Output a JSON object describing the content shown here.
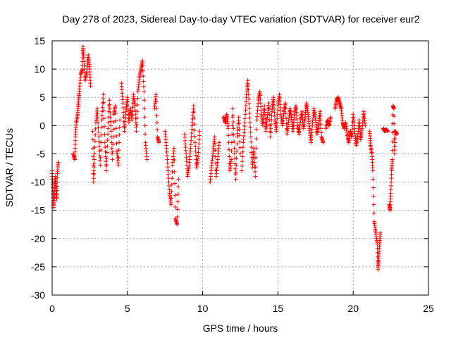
{
  "chart_data": {
    "type": "scatter",
    "title": "Day 278 of 2023, Sidereal Day-to-day VTEC variation (SDTVAR) for receiver eur2",
    "xlabel": "GPS time / hours",
    "ylabel": "SDTVAR / TECUs",
    "xlim": [
      0,
      25
    ],
    "ylim": [
      -30,
      15
    ],
    "xticks": [
      "0",
      "5",
      "10",
      "15",
      "20",
      "25"
    ],
    "yticks": [
      "15",
      "10",
      "5",
      "0",
      "-5",
      "-10",
      "-15",
      "-20",
      "-25",
      "-30"
    ],
    "grid": true,
    "marker": "+",
    "series": [
      {
        "name": "SDTVAR",
        "color": "#ff0000",
        "segments": [
          [
            [
              0.0,
              -8.0
            ],
            [
              0.05,
              -11.0
            ],
            [
              0.1,
              -14.5
            ],
            [
              0.15,
              -12.0
            ],
            [
              0.2,
              -9.0
            ],
            [
              0.25,
              -11.5
            ],
            [
              0.3,
              -13.0
            ],
            [
              0.35,
              -8.5
            ],
            [
              0.4,
              -6.5
            ]
          ],
          [
            [
              1.4,
              -5.0
            ],
            [
              1.5,
              -6.0
            ],
            [
              1.55,
              -2.0
            ],
            [
              1.6,
              0.5
            ],
            [
              1.7,
              2.0
            ],
            [
              1.75,
              4.0
            ],
            [
              1.8,
              6.0
            ],
            [
              1.9,
              9.0
            ],
            [
              2.0,
              10.0
            ],
            [
              2.05,
              14.0
            ],
            [
              2.1,
              12.0
            ],
            [
              2.2,
              8.0
            ],
            [
              2.3,
              9.5
            ],
            [
              2.4,
              12.5
            ],
            [
              2.5,
              10.0
            ],
            [
              2.55,
              7.0
            ]
          ],
          [
            [
              2.7,
              -1.0
            ],
            [
              2.75,
              -10.0
            ],
            [
              2.8,
              -6.0
            ],
            [
              2.9,
              0.5
            ],
            [
              3.0,
              3.0
            ],
            [
              3.1,
              -2.0
            ],
            [
              3.2,
              -7.0
            ],
            [
              3.3,
              1.0
            ],
            [
              3.4,
              5.5
            ],
            [
              3.5,
              -3.0
            ],
            [
              3.6,
              -8.0
            ],
            [
              3.7,
              -1.5
            ],
            [
              3.8,
              4.5
            ],
            [
              3.9,
              0.0
            ],
            [
              4.0,
              -6.0
            ],
            [
              4.1,
              2.0
            ],
            [
              4.2,
              3.5
            ],
            [
              4.3,
              -4.5
            ],
            [
              4.4,
              -7.0
            ],
            [
              4.5,
              1.0
            ]
          ],
          [
            [
              4.6,
              7.5
            ],
            [
              4.7,
              4.0
            ],
            [
              4.8,
              -1.0
            ],
            [
              4.9,
              2.5
            ],
            [
              5.0,
              5.0
            ],
            [
              5.1,
              0.5
            ],
            [
              5.2,
              3.0
            ],
            [
              5.3,
              1.0
            ],
            [
              5.4,
              5.5
            ],
            [
              5.5,
              3.5
            ],
            [
              5.6,
              -1.0
            ],
            [
              5.7,
              6.0
            ],
            [
              5.8,
              8.5
            ],
            [
              5.9,
              10.0
            ],
            [
              6.0,
              11.5
            ],
            [
              6.1,
              6.0
            ],
            [
              6.2,
              -3.0
            ],
            [
              6.3,
              -6.0
            ]
          ],
          [
            [
              6.8,
              3.0
            ],
            [
              6.9,
              5.5
            ],
            [
              7.0,
              -2.0
            ],
            [
              7.1,
              -3.0
            ]
          ],
          [
            [
              7.5,
              -1.0
            ],
            [
              7.6,
              -4.0
            ],
            [
              7.7,
              -8.0
            ],
            [
              7.8,
              -12.0
            ],
            [
              7.9,
              -14.0
            ],
            [
              8.0,
              -7.0
            ],
            [
              8.1,
              -4.0
            ],
            [
              8.2,
              -16.5
            ],
            [
              8.3,
              -17.5
            ],
            [
              8.4,
              -9.5
            ]
          ],
          [
            [
              8.8,
              -1.5
            ],
            [
              8.9,
              -5.0
            ],
            [
              9.0,
              -9.0
            ],
            [
              9.1,
              -7.0
            ],
            [
              9.2,
              -4.0
            ],
            [
              9.3,
              0.0
            ],
            [
              9.4,
              3.5
            ],
            [
              9.5,
              -3.0
            ],
            [
              9.6,
              -7.5
            ],
            [
              9.7,
              -5.5
            ],
            [
              9.8,
              -1.0
            ]
          ],
          [
            [
              10.5,
              -10.0
            ],
            [
              10.6,
              -7.0
            ],
            [
              10.7,
              -4.5
            ],
            [
              10.8,
              -2.0
            ],
            [
              10.9,
              -9.0
            ],
            [
              11.0,
              -6.0
            ],
            [
              11.1,
              -3.0
            ]
          ],
          [
            [
              11.4,
              1.5
            ],
            [
              11.5,
              0.5
            ],
            [
              11.6,
              2.0
            ],
            [
              11.7,
              -0.5
            ],
            [
              11.8,
              -8.0
            ],
            [
              11.9,
              -6.0
            ],
            [
              12.0,
              3.0
            ],
            [
              12.1,
              -4.0
            ],
            [
              12.2,
              -9.5
            ],
            [
              12.3,
              -2.0
            ],
            [
              12.4,
              1.5
            ],
            [
              12.5,
              -5.0
            ]
          ],
          [
            [
              12.6,
              -8.0
            ],
            [
              12.7,
              -3.0
            ],
            [
              12.8,
              0.5
            ],
            [
              12.9,
              5.0
            ],
            [
              13.0,
              8.0
            ],
            [
              13.1,
              3.0
            ],
            [
              13.2,
              -2.0
            ],
            [
              13.3,
              -7.5
            ],
            [
              13.4,
              -4.0
            ],
            [
              13.5,
              -9.0
            ],
            [
              13.6,
              1.0
            ],
            [
              13.7,
              4.5
            ],
            [
              13.8,
              6.0
            ],
            [
              13.9,
              2.0
            ],
            [
              14.0,
              0.0
            ],
            [
              14.1,
              3.5
            ],
            [
              14.2,
              -1.0
            ],
            [
              14.3,
              1.5
            ],
            [
              14.4,
              4.0
            ],
            [
              14.5,
              -2.0
            ],
            [
              14.6,
              2.5
            ],
            [
              14.7,
              5.0
            ],
            [
              14.8,
              1.0
            ],
            [
              14.9,
              -1.0
            ],
            [
              15.0,
              3.5
            ],
            [
              15.1,
              5.5
            ],
            [
              15.2,
              2.0
            ],
            [
              15.3,
              0.0
            ],
            [
              15.4,
              2.5
            ],
            [
              15.5,
              4.0
            ],
            [
              15.6,
              -1.5
            ],
            [
              15.7,
              0.5
            ],
            [
              15.8,
              3.0
            ],
            [
              15.9,
              1.5
            ],
            [
              16.0,
              -1.0
            ],
            [
              16.1,
              2.0
            ],
            [
              16.2,
              3.5
            ],
            [
              16.3,
              0.0
            ],
            [
              16.4,
              -1.5
            ],
            [
              16.5,
              1.0
            ],
            [
              16.6,
              2.5
            ],
            [
              16.7,
              -0.5
            ],
            [
              16.8,
              1.5
            ],
            [
              16.9,
              4.0
            ],
            [
              17.0,
              2.0
            ],
            [
              17.1,
              -0.5
            ],
            [
              17.2,
              -3.0
            ],
            [
              17.3,
              0.5
            ],
            [
              17.4,
              3.0
            ],
            [
              17.5,
              1.0
            ],
            [
              17.6,
              -1.5
            ],
            [
              17.7,
              0.0
            ],
            [
              17.8,
              2.5
            ],
            [
              17.9,
              -2.0
            ],
            [
              18.0,
              -3.0
            ]
          ],
          [
            [
              18.2,
              -0.5
            ],
            [
              18.3,
              1.0
            ],
            [
              18.4,
              0.0
            ],
            [
              18.5,
              1.5
            ]
          ],
          [
            [
              18.8,
              3.0
            ],
            [
              18.9,
              4.5
            ],
            [
              19.0,
              5.0
            ],
            [
              19.1,
              4.0
            ],
            [
              19.2,
              3.0
            ],
            [
              19.3,
              0.5
            ],
            [
              19.4,
              -0.5
            ],
            [
              19.5,
              0.5
            ],
            [
              19.6,
              -1.5
            ],
            [
              19.7,
              -3.0
            ],
            [
              19.8,
              -1.0
            ],
            [
              19.9,
              -2.0
            ],
            [
              20.0,
              2.0
            ],
            [
              20.1,
              -1.0
            ],
            [
              20.2,
              -3.5
            ],
            [
              20.3,
              -2.0
            ],
            [
              20.4,
              1.0
            ],
            [
              20.5,
              -2.5
            ],
            [
              20.6,
              -0.5
            ],
            [
              20.7,
              2.5
            ],
            [
              20.8,
              0.0
            ]
          ],
          [
            [
              21.1,
              -1.0
            ],
            [
              21.15,
              -3.5
            ],
            [
              21.25,
              -5.0
            ],
            [
              21.3,
              -8.0
            ],
            [
              21.4,
              -17.0
            ],
            [
              21.5,
              -19.0
            ],
            [
              21.6,
              -21.0
            ],
            [
              21.65,
              -25.5
            ],
            [
              21.7,
              -23.5
            ],
            [
              21.75,
              -21.0
            ],
            [
              21.8,
              -19.0
            ]
          ],
          [
            [
              22.0,
              -0.5
            ],
            [
              22.1,
              -1.0
            ],
            [
              22.2,
              -0.7
            ],
            [
              22.3,
              -1.0
            ]
          ],
          [
            [
              22.4,
              -14.0
            ],
            [
              22.45,
              -15.0
            ],
            [
              22.5,
              -12.0
            ],
            [
              22.55,
              -8.0
            ],
            [
              22.6,
              -6.0
            ],
            [
              22.65,
              3.5
            ],
            [
              22.7,
              3.0
            ],
            [
              22.75,
              -5.0
            ],
            [
              22.8,
              -1.0
            ],
            [
              22.9,
              -1.5
            ]
          ]
        ]
      }
    ]
  }
}
